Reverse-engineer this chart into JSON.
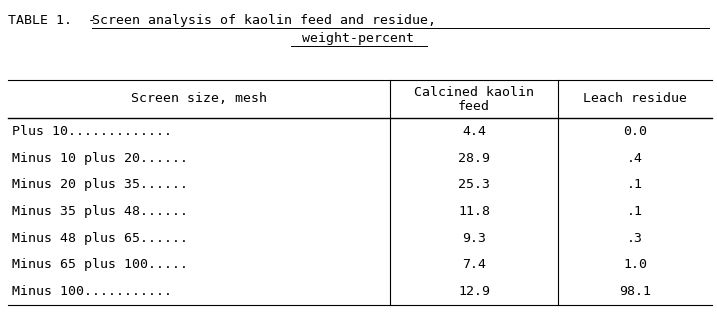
{
  "title_prefix": "TABLE 1.  - ",
  "title_underlined1": "Screen analysis of kaolin feed and residue,",
  "title_line2": "weight-percent",
  "col_headers": [
    "Screen size, mesh",
    "Calcined kaolin",
    "feed",
    "Leach residue"
  ],
  "rows": [
    [
      "Plus 10.............",
      "4.4",
      "0.0"
    ],
    [
      "Minus 10 plus 20......",
      "28.9",
      ".4"
    ],
    [
      "Minus 20 plus 35......",
      "25.3",
      ".1"
    ],
    [
      "Minus 35 plus 48......",
      "11.8",
      ".1"
    ],
    [
      "Minus 48 plus 65......",
      "9.3",
      ".3"
    ],
    [
      "Minus 65 plus 100.....",
      "7.4",
      "1.0"
    ],
    [
      "Minus 100...........",
      "12.9",
      "98.1"
    ]
  ],
  "bg_color": "#ffffff",
  "text_color": "#000000",
  "font_family": "DejaVu Sans Mono",
  "font_size": 9.5,
  "title_font_size": 9.5,
  "fig_width": 7.17,
  "fig_height": 3.19,
  "dpi": 100
}
